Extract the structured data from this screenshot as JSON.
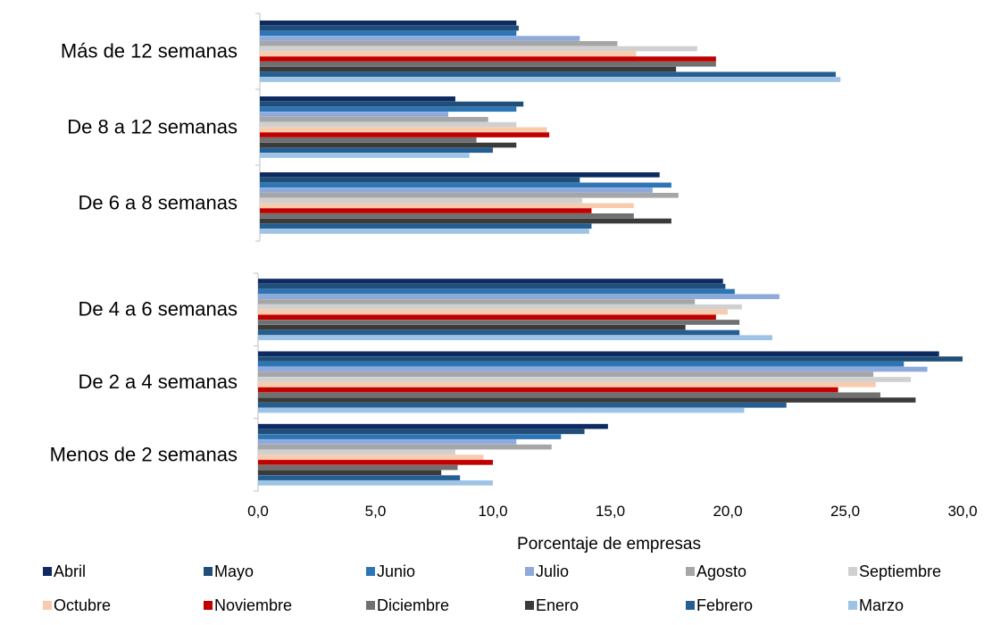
{
  "chart_data": {
    "type": "bar",
    "orientation": "horizontal",
    "xlabel": "Porcentaje de empresas",
    "xlim": [
      0,
      30
    ],
    "x_ticks": [
      "0,0",
      "5,0",
      "10,0",
      "15,0",
      "20,0",
      "25,0",
      "30,0"
    ],
    "grid": false,
    "legend_position": "bottom",
    "categories": [
      "Más de 12 semanas",
      "De 8 a 12 semanas",
      "De 6 a 8 semanas",
      "De 4 a 6 semanas",
      "De 2 a 4 semanas",
      "Menos de 2 semanas"
    ],
    "series": [
      {
        "name": "Abril",
        "color": "#0d2a63",
        "values": [
          11.0,
          8.4,
          17.1,
          19.8,
          29.0,
          14.9
        ]
      },
      {
        "name": "Mayo",
        "color": "#1f4e79",
        "values": [
          11.1,
          11.3,
          13.7,
          19.9,
          30.0,
          13.9
        ]
      },
      {
        "name": "Junio",
        "color": "#2e75b6",
        "values": [
          11.0,
          11.0,
          17.6,
          20.3,
          27.5,
          12.9
        ]
      },
      {
        "name": "Julio",
        "color": "#8eaadb",
        "values": [
          13.7,
          8.1,
          16.8,
          22.2,
          28.5,
          11.0
        ]
      },
      {
        "name": "Agosto",
        "color": "#a6a6a6",
        "values": [
          15.3,
          9.8,
          17.9,
          18.6,
          26.2,
          12.5
        ]
      },
      {
        "name": "Septiembre",
        "color": "#d0d0d0",
        "values": [
          18.7,
          11.0,
          13.8,
          20.6,
          27.8,
          8.4
        ]
      },
      {
        "name": "Octubre",
        "color": "#f8cbad",
        "values": [
          16.1,
          12.3,
          16.0,
          20.0,
          26.3,
          9.6
        ]
      },
      {
        "name": "Noviembre",
        "color": "#c00000",
        "values": [
          19.5,
          12.4,
          14.2,
          19.5,
          24.7,
          10.0
        ]
      },
      {
        "name": "Diciembre",
        "color": "#707070",
        "values": [
          19.5,
          9.3,
          16.0,
          20.5,
          26.5,
          8.5
        ]
      },
      {
        "name": "Enero",
        "color": "#3a3a3a",
        "values": [
          17.8,
          11.0,
          17.6,
          18.2,
          28.0,
          7.8
        ]
      },
      {
        "name": "Febrero",
        "color": "#255e91",
        "values": [
          24.6,
          10.0,
          14.2,
          20.5,
          22.5,
          8.6
        ]
      },
      {
        "name": "Marzo",
        "color": "#9dc3e6",
        "values": [
          24.8,
          9.0,
          14.1,
          21.9,
          20.7,
          10.0
        ]
      }
    ]
  }
}
